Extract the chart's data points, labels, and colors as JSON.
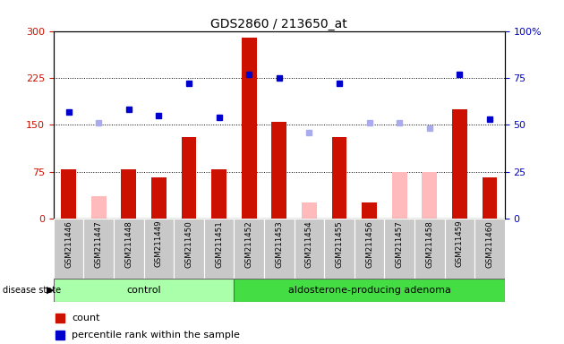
{
  "title": "GDS2860 / 213650_at",
  "samples": [
    "GSM211446",
    "GSM211447",
    "GSM211448",
    "GSM211449",
    "GSM211450",
    "GSM211451",
    "GSM211452",
    "GSM211453",
    "GSM211454",
    "GSM211455",
    "GSM211456",
    "GSM211457",
    "GSM211458",
    "GSM211459",
    "GSM211460"
  ],
  "count_present": [
    78,
    null,
    78,
    65,
    130,
    78,
    290,
    155,
    null,
    130,
    25,
    null,
    null,
    175,
    65
  ],
  "count_absent": [
    null,
    35,
    null,
    null,
    null,
    null,
    null,
    null,
    25,
    null,
    null,
    75,
    75,
    null,
    null
  ],
  "rank_present_pct": [
    57,
    null,
    58,
    55,
    72,
    54,
    77,
    75,
    null,
    72,
    null,
    null,
    null,
    77,
    53
  ],
  "rank_absent_pct": [
    null,
    51,
    null,
    null,
    null,
    null,
    null,
    null,
    46,
    null,
    51,
    51,
    48,
    null,
    null
  ],
  "control_count": 6,
  "adenoma_count": 9,
  "ylim_left": [
    0,
    300
  ],
  "ylim_right": [
    0,
    100
  ],
  "yticks_left": [
    0,
    75,
    150,
    225,
    300
  ],
  "yticks_right": [
    0,
    25,
    50,
    75,
    100
  ],
  "color_count_present": "#cc1100",
  "color_count_absent": "#ffbbbb",
  "color_rank_present": "#0000cc",
  "color_rank_absent": "#aaaaee",
  "bg_control": "#aaffaa",
  "bg_adenoma": "#44dd44",
  "label_fontsize": 8,
  "title_fontsize": 10
}
